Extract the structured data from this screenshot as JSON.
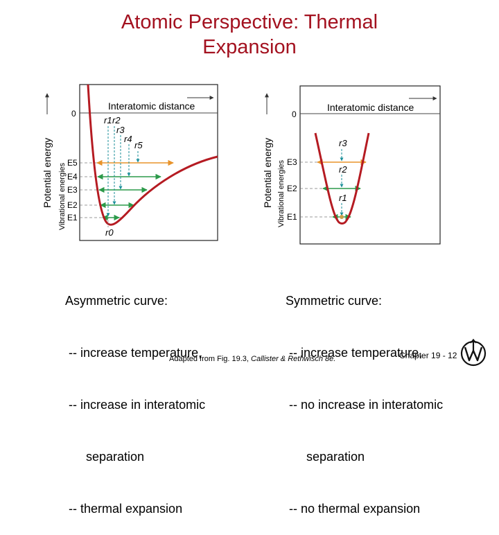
{
  "title": {
    "line1": "Atomic Perspective: Thermal",
    "line2": "Expansion"
  },
  "left_diagram": {
    "x_axis_label": "Interatomic distance",
    "y_axis_label": "Potential energy",
    "secondary_label": "Vibrational energies",
    "zero_label": "0",
    "radii": [
      "r0",
      "r1",
      "r2",
      "r3",
      "r4",
      "r5"
    ],
    "energies": [
      "E1",
      "E2",
      "E3",
      "E4",
      "E5"
    ]
  },
  "right_diagram": {
    "x_axis_label": "Interatomic distance",
    "y_axis_label": "Potential energy",
    "secondary_label": "Vibrational energies",
    "zero_label": "0",
    "radii": [
      "r1",
      "r2",
      "r3"
    ],
    "energies": [
      "E1",
      "E2",
      "E3"
    ]
  },
  "left_caption": {
    "line1": "Asymmetric curve:",
    "line2": " -- increase temperature,",
    "line3": " -- increase in interatomic",
    "line4": "      separation",
    "line5": " -- thermal expansion"
  },
  "right_caption": {
    "line1": "Symmetric curve:",
    "line2": " -- increase temperature,",
    "line3": " -- no increase in interatomic",
    "line4": "      separation",
    "line5": " -- no thermal expansion"
  },
  "credit": {
    "prefix": "Adapted from Fig. 19.3, ",
    "italic": "Callister & Rethwisch 8e.",
    "suffix": ""
  },
  "footer": {
    "chapter": "Chapter 19 - 12"
  },
  "colors": {
    "title": "#a3111f",
    "curve": "#b51b22",
    "energy_arrow": "#e8932a",
    "energy_arrow_green": "#2c9a4a",
    "radius_arrow": "#1b8f9a"
  }
}
